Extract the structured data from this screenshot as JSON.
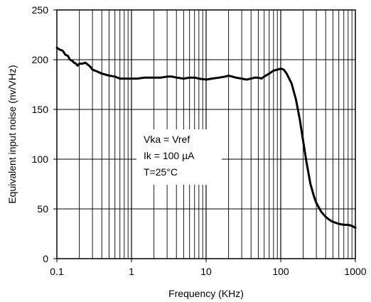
{
  "chart_data": {
    "type": "line",
    "xscale": "log",
    "grid": true,
    "xlabel": "Frequency (KHz)",
    "ylabel": "Equivalent input noise (nv/VHz)",
    "xlim": [
      0.1,
      1000
    ],
    "ylim": [
      0,
      250
    ],
    "xticks": [
      0.1,
      1,
      10,
      100,
      1000
    ],
    "xtick_labels": [
      "0.1",
      "1",
      "10",
      "100",
      "1000"
    ],
    "yticks": [
      0,
      50,
      100,
      150,
      200,
      250
    ],
    "ytick_labels": [
      "0",
      "50",
      "100",
      "150",
      "200",
      "250"
    ],
    "annotation_lines": [
      "Vka = Vref",
      "Ik = 100 µA",
      "T=25°C"
    ],
    "series": [
      {
        "x": [
          0.1,
          0.11,
          0.12,
          0.13,
          0.14,
          0.15,
          0.16,
          0.17,
          0.18,
          0.19,
          0.2,
          0.22,
          0.24,
          0.26,
          0.28,
          0.3,
          0.35,
          0.4,
          0.45,
          0.5,
          0.6,
          0.7,
          0.8,
          1,
          1.2,
          1.5,
          2,
          2.5,
          3,
          3.5,
          4,
          5,
          6,
          7,
          8,
          10,
          12,
          15,
          18,
          20,
          25,
          30,
          35,
          40,
          45,
          50,
          55,
          60,
          70,
          80,
          90,
          100,
          110,
          120,
          140,
          160,
          180,
          200,
          220,
          250,
          280,
          300,
          350,
          400,
          450,
          500,
          600,
          700,
          800,
          900,
          1000
        ],
        "y": [
          212,
          210,
          209,
          205,
          204,
          200,
          199,
          197,
          196,
          194,
          196,
          196,
          197,
          195,
          193,
          190,
          188,
          186,
          185,
          184,
          183,
          181,
          181,
          181,
          181,
          182,
          182,
          182,
          183,
          183,
          182,
          181,
          182,
          182,
          181,
          180,
          181,
          182,
          183,
          184,
          182,
          181,
          180,
          181,
          182,
          182,
          181,
          183,
          186,
          189,
          190,
          191,
          190,
          186,
          176,
          160,
          140,
          118,
          98,
          75,
          62,
          56,
          47,
          42,
          39,
          37,
          35,
          34,
          34,
          33,
          31
        ]
      }
    ]
  }
}
